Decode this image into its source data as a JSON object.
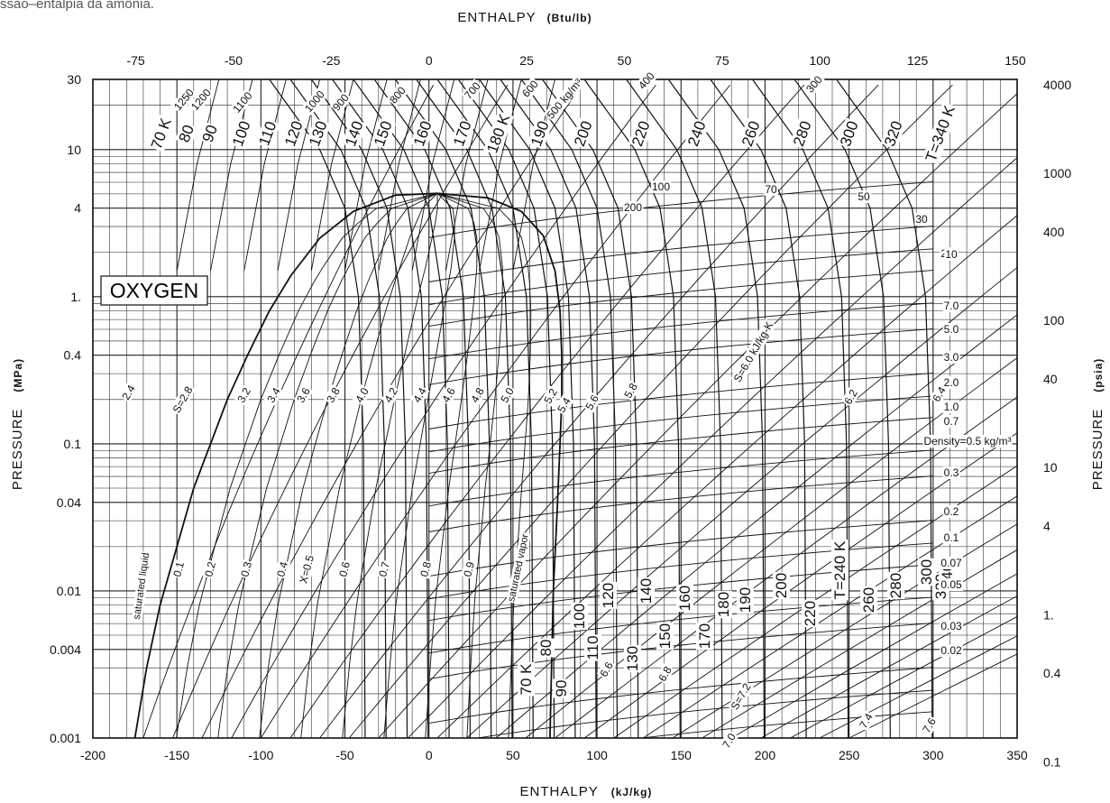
{
  "caption": "ssão–entalpia da amônia.",
  "chart_data": {
    "type": "line",
    "title": "OXYGEN",
    "substance_label": "OXYGEN",
    "x_bottom": {
      "label": "ENTHALPY",
      "unit": "(kJ/kg)",
      "range": [
        -200,
        350
      ],
      "ticks": [
        "-200",
        "-150",
        "-100",
        "-50",
        "0",
        "50",
        "100",
        "150",
        "200",
        "250",
        "300",
        "350"
      ]
    },
    "x_top": {
      "label": "ENTHALPY",
      "unit": "(Btu/lb)",
      "range": [
        -86,
        150.5
      ],
      "ticks": [
        "-75",
        "-50",
        "-25",
        "0",
        "25",
        "50",
        "75",
        "100",
        "125",
        "150"
      ]
    },
    "y_left": {
      "label": "PRESSURE",
      "unit": "(MPa)",
      "scale": "log",
      "range": [
        0.001,
        30
      ],
      "ticks": [
        "30",
        "10",
        "4",
        "1.",
        "0.4",
        "0.1",
        "0.04",
        "0.01",
        "0.004",
        "0.001"
      ]
    },
    "y_right": {
      "label": "PRESSURE",
      "unit": "(psia)",
      "scale": "log",
      "range": [
        0.145,
        4351
      ],
      "ticks": [
        "4000",
        "1000",
        "400",
        "100",
        "40",
        "10",
        "4",
        "1.",
        "0.4",
        "0.1"
      ]
    },
    "grid": true,
    "saturation_dome": {
      "liquid_label": "saturated liquid",
      "vapor_label": "saturated vapor",
      "liquid": [
        [
          -175,
          0.001
        ],
        [
          -168,
          0.003
        ],
        [
          -160,
          0.008
        ],
        [
          -150,
          0.02
        ],
        [
          -140,
          0.05
        ],
        [
          -130,
          0.1
        ],
        [
          -120,
          0.2
        ],
        [
          -108,
          0.4
        ],
        [
          -95,
          0.8
        ],
        [
          -82,
          1.4
        ],
        [
          -65,
          2.5
        ],
        [
          -45,
          3.8
        ],
        [
          -20,
          4.9
        ],
        [
          5,
          5.04
        ]
      ],
      "vapor": [
        [
          72,
          0.001
        ],
        [
          74,
          0.01
        ],
        [
          76,
          0.03
        ],
        [
          78,
          0.1
        ],
        [
          79,
          0.2
        ],
        [
          79,
          0.4
        ],
        [
          78,
          0.8
        ],
        [
          75,
          1.5
        ],
        [
          68,
          2.6
        ],
        [
          55,
          3.8
        ],
        [
          35,
          4.7
        ],
        [
          5,
          5.04
        ]
      ]
    },
    "entropy_lines": {
      "unit": "kJ/kg-K",
      "labels": [
        "2.4",
        "S=2.8",
        "3.2",
        "3.4",
        "3.6",
        "3.8",
        "4.0",
        "4.2",
        "4.4",
        "4.6",
        "4.8",
        "5.0",
        "5.2",
        "5.4",
        "5.6",
        "5.8",
        "S=6.0 kJ/kg-K",
        "6.2",
        "6.4",
        "6.6",
        "6.8",
        "7.0",
        "S=7.2",
        "7.4",
        "7.6"
      ]
    },
    "quality_lines": {
      "labels": [
        "0.1",
        "0.2",
        "0.3",
        "0.4",
        "X=0.5",
        "0.6",
        "0.7",
        "0.8",
        "0.9"
      ]
    },
    "isotherms_upper": {
      "unit": "K",
      "labels": [
        "70 K",
        "80",
        "90",
        "100",
        "110",
        "120",
        "130",
        "140",
        "150",
        "160",
        "170",
        "180 K",
        "190",
        "200",
        "220",
        "240",
        "260",
        "280",
        "300",
        "320",
        "T=340 K"
      ]
    },
    "isotherms_lower": {
      "unit": "K",
      "labels": [
        "70 K",
        "80",
        "90",
        "100",
        "110",
        "120",
        "130",
        "140",
        "150",
        "160",
        "170",
        "180",
        "190",
        "200",
        "220",
        "T=240 K",
        "260",
        "280",
        "300",
        "320",
        "340"
      ]
    },
    "density_lines_liquid": {
      "unit": "kg/m³",
      "labels": [
        "1250",
        "1200",
        "1100",
        "1000",
        "900",
        "800",
        "700",
        "600",
        "500 kg/m³",
        "400",
        "300"
      ]
    },
    "density_lines_vapor": {
      "unit": "kg/m³",
      "labels": [
        "200",
        "100",
        "70",
        "50",
        "30",
        "20",
        "10",
        "7.0",
        "5.0",
        "3.0",
        "2.0",
        "1.0",
        "0.7",
        "Density=0.5 kg/m³",
        "0.3",
        "0.2",
        "0.1",
        "0.07",
        "0.05",
        "0.03",
        "0.02"
      ]
    }
  }
}
